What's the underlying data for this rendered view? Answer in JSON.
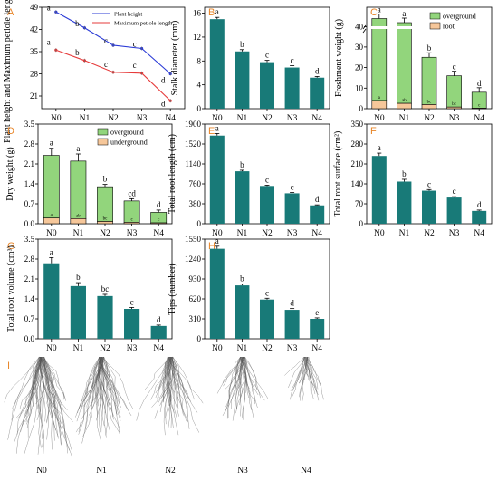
{
  "panel_letters": [
    "A",
    "B",
    "C",
    "D",
    "E",
    "F",
    "G",
    "H",
    "I"
  ],
  "treatments": [
    "N0",
    "N1",
    "N2",
    "N3",
    "N4"
  ],
  "colors": {
    "teal": "#187a78",
    "overground": "#92d57c",
    "root": "#f6c79a",
    "plant_height": "#2b3bd6",
    "petiole": "#e63b3b",
    "panel_letter": "#e8862a"
  },
  "chart_data": [
    {
      "id": "A",
      "type": "line",
      "categories": [
        "N0",
        "N1",
        "N2",
        "N3",
        "N4"
      ],
      "ylabel": "Plant height and Maximum petiole length (cm)",
      "ylim": [
        17,
        49
      ],
      "yticks": [
        "21",
        "28",
        "35",
        "42",
        "49"
      ],
      "legend": "top-right",
      "series": [
        {
          "name": "Plant height",
          "values": [
            47.5,
            42.5,
            37,
            36,
            28
          ],
          "letters": [
            "a",
            "b",
            "c",
            "c",
            "d"
          ],
          "color": "#2b3bd6"
        },
        {
          "name": "Maximum petiole length",
          "values": [
            35.5,
            32.2,
            28.5,
            28.2,
            19.5
          ],
          "letters": [
            "a",
            "b",
            "c",
            "c",
            "d"
          ],
          "color": "#e63b3b"
        }
      ]
    },
    {
      "id": "B",
      "type": "bar",
      "categories": [
        "N0",
        "N1",
        "N2",
        "N3",
        "N4"
      ],
      "values": [
        15.0,
        9.6,
        7.8,
        6.9,
        5.2
      ],
      "errors": [
        0.3,
        0.3,
        0.3,
        0.3,
        0.2
      ],
      "letters": [
        "a",
        "b",
        "c",
        "c",
        "d"
      ],
      "ylabel": "Stalk diameter (mm)",
      "ylim": [
        0,
        17
      ],
      "yticks": [
        "0",
        "4",
        "8",
        "12",
        "16"
      ]
    },
    {
      "id": "C",
      "type": "bar",
      "stacked": true,
      "axis_break": true,
      "categories": [
        "N0",
        "N1",
        "N2",
        "N3",
        "N4"
      ],
      "ylabel": "Freshment weight (g)",
      "yticks": [
        "0",
        "10",
        "20",
        "30",
        "40"
      ],
      "legend": "top-right",
      "series": [
        {
          "name": "overground",
          "values": [
            46,
            43,
            25,
            16,
            8
          ],
          "letters": [
            "a",
            "a",
            "b",
            "c",
            "d"
          ],
          "color": "#92d57c"
        },
        {
          "name": "root",
          "values": [
            4.0,
            2.6,
            2.0,
            0.8,
            0.3
          ],
          "letters": [
            "a",
            "ab",
            "bc",
            "bc",
            "c"
          ],
          "color": "#f6c79a"
        }
      ]
    },
    {
      "id": "D",
      "type": "bar",
      "stacked": true,
      "categories": [
        "N0",
        "N1",
        "N2",
        "N3",
        "N4"
      ],
      "ylabel": "Dry weight (g)",
      "ylim": [
        0,
        3.5
      ],
      "yticks": [
        "0.0",
        "0.7",
        "1.4",
        "2.1",
        "2.8",
        "3.5"
      ],
      "legend": "top-right",
      "series": [
        {
          "name": "overground",
          "values": [
            2.4,
            2.2,
            1.3,
            0.8,
            0.4
          ],
          "letters": [
            "a",
            "a",
            "b",
            "cd",
            "d"
          ],
          "color": "#92d57c"
        },
        {
          "name": "underground",
          "values": [
            0.2,
            0.18,
            0.08,
            0.05,
            0.03
          ],
          "letters": [
            "a",
            "ab",
            "bc",
            "c",
            "c"
          ],
          "color": "#f6c79a"
        }
      ]
    },
    {
      "id": "E",
      "type": "bar",
      "categories": [
        "N0",
        "N1",
        "N2",
        "N3",
        "N4"
      ],
      "values": [
        1680,
        1000,
        720,
        580,
        350
      ],
      "errors": [
        40,
        20,
        15,
        15,
        10
      ],
      "letters": [
        "a",
        "b",
        "c",
        "c",
        "d"
      ],
      "ylabel": "Total root length (cm)",
      "ylim": [
        0,
        1900
      ],
      "yticks": [
        "0",
        "380",
        "760",
        "1140",
        "1520",
        "1900"
      ]
    },
    {
      "id": "F",
      "type": "bar",
      "categories": [
        "N0",
        "N1",
        "N2",
        "N3",
        "N4"
      ],
      "values": [
        238,
        148,
        116,
        92,
        45
      ],
      "errors": [
        10,
        8,
        4,
        3,
        3
      ],
      "letters": [
        "a",
        "b",
        "c",
        "c",
        "d"
      ],
      "ylabel": "Total root surface (cm²)",
      "ylim": [
        0,
        350
      ],
      "yticks": [
        "0",
        "70",
        "140",
        "210",
        "280",
        "350"
      ]
    },
    {
      "id": "G",
      "type": "bar",
      "categories": [
        "N0",
        "N1",
        "N2",
        "N3",
        "N4"
      ],
      "values": [
        2.65,
        1.85,
        1.5,
        1.05,
        0.45
      ],
      "errors": [
        0.2,
        0.12,
        0.06,
        0.05,
        0.03
      ],
      "letters": [
        "a",
        "b",
        "bc",
        "c",
        "d"
      ],
      "ylabel": "Total root volume (cm³)",
      "ylim": [
        0,
        3.5
      ],
      "yticks": [
        "0.0",
        "0.7",
        "1.4",
        "2.1",
        "2.8",
        "3.5"
      ]
    },
    {
      "id": "H",
      "type": "bar",
      "categories": [
        "N0",
        "N1",
        "N2",
        "N3",
        "N4"
      ],
      "values": [
        1400,
        830,
        610,
        450,
        310
      ],
      "errors": [
        40,
        20,
        20,
        20,
        15
      ],
      "letters": [
        "a",
        "b",
        "c",
        "d",
        "e"
      ],
      "ylabel": "Tips (number)",
      "ylim": [
        0,
        1550
      ],
      "yticks": [
        "0",
        "310",
        "620",
        "930",
        "1240",
        "1550"
      ]
    }
  ],
  "root_images": {
    "letter": "I",
    "labels": [
      "N0",
      "N1",
      "N2",
      "N3",
      "N4"
    ],
    "relative_size": [
      1.0,
      0.9,
      0.8,
      0.65,
      0.45
    ]
  }
}
